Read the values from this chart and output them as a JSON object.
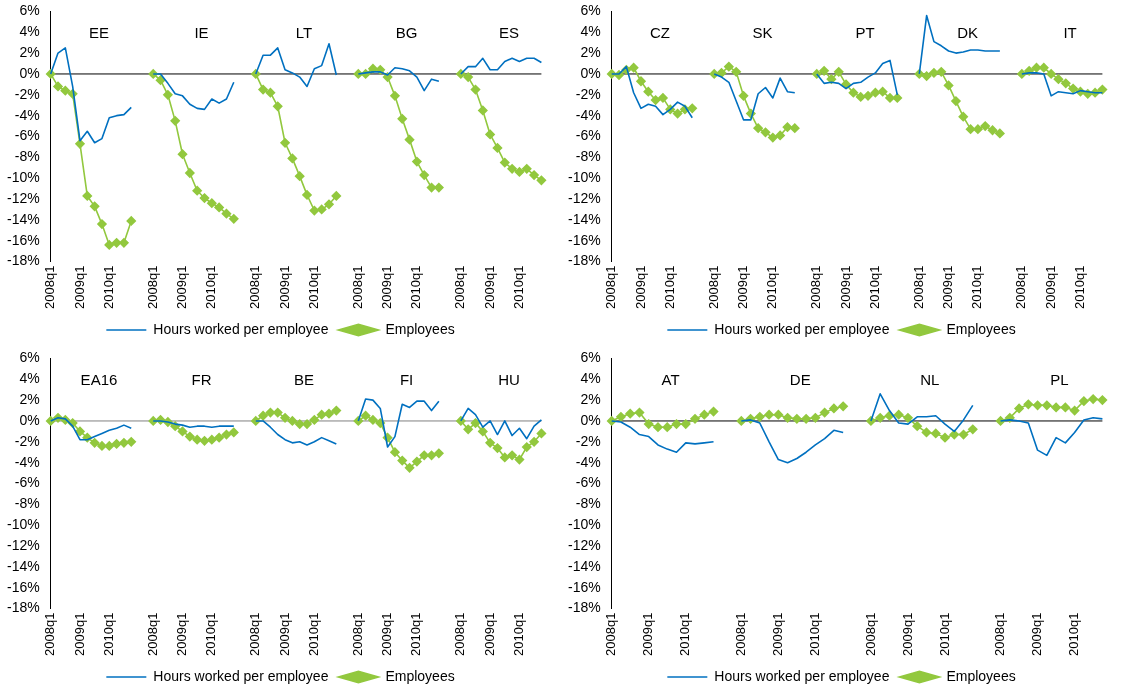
{
  "chart_data": [
    {
      "type": "line",
      "categories": [
        "2008q1",
        null,
        null,
        null,
        "2009q1",
        null,
        null,
        null,
        "2010q1",
        null,
        null,
        null,
        null,
        null,
        "2008q1",
        null,
        null,
        null,
        "2009q1",
        null,
        null,
        null,
        "2010q1",
        null,
        null,
        null,
        null,
        null,
        "2008q1",
        null,
        null,
        null,
        "2009q1",
        null,
        null,
        null,
        "2010q1",
        null,
        null,
        null,
        null,
        null,
        "2008q1",
        null,
        null,
        null,
        "2009q1",
        null,
        null,
        null,
        "2010q1",
        null,
        null,
        null,
        null,
        null,
        "2008q1",
        null,
        null,
        null,
        "2009q1",
        null,
        null,
        null,
        "2010q1",
        null,
        null,
        null
      ],
      "series": [
        {
          "name": "Employees",
          "color": "#92c83e",
          "marker": "diamond",
          "values": [
            0,
            -1.2,
            -1.6,
            -1.9,
            -6.7,
            -11.7,
            -12.7,
            -14.4,
            -16.4,
            -16.2,
            -16.2,
            -14.1,
            null,
            null,
            0,
            -0.6,
            -2.0,
            -4.5,
            -7.7,
            -9.5,
            -11.2,
            -11.9,
            -12.4,
            -12.8,
            -13.4,
            -13.9,
            null,
            null,
            0,
            -1.5,
            -1.8,
            -3.1,
            -6.6,
            -8.1,
            -9.8,
            -11.6,
            -13.1,
            -13.0,
            -12.5,
            -11.7,
            null,
            null,
            0,
            0,
            0.5,
            0.4,
            -0.3,
            -2.1,
            -4.3,
            -6.3,
            -8.4,
            -9.7,
            -10.9,
            -10.9,
            null,
            null,
            0,
            -0.3,
            -1.5,
            -3.5,
            -5.8,
            -7.1,
            -8.5,
            -9.1,
            -9.4,
            -9.1,
            -9.7,
            -10.2
          ]
        },
        {
          "name": "Hours worked per employee",
          "color": "#0070c0",
          "marker": "none",
          "values": [
            0,
            2.0,
            2.5,
            -1.2,
            -6.4,
            -5.5,
            -6.6,
            -6.2,
            -4.2,
            -4.0,
            -3.9,
            -3.2,
            null,
            null,
            0,
            0,
            -0.9,
            -1.9,
            -2.1,
            -2.9,
            -3.3,
            -3.4,
            -2.4,
            -2.8,
            -2.4,
            -0.8,
            null,
            null,
            0,
            1.8,
            1.8,
            2.5,
            0.4,
            0.1,
            -0.3,
            -1.2,
            0.5,
            0.8,
            2.9,
            -0.1,
            null,
            null,
            0,
            0.1,
            0.2,
            0.2,
            -0.1,
            0.6,
            0.5,
            0.3,
            -0.3,
            -1.6,
            -0.5,
            -0.7,
            null,
            null,
            0,
            0.7,
            0.7,
            1.5,
            0.4,
            0.4,
            1.2,
            1.5,
            1.2,
            1.5,
            1.5,
            1.1
          ]
        }
      ],
      "annotations": [
        "EE",
        "IE",
        "LT",
        "BG",
        "ES"
      ],
      "ylim": [
        -18,
        6
      ],
      "yticks": [
        {
          "value": 6,
          "label": "6%"
        },
        {
          "value": 4,
          "label": "4%"
        },
        {
          "value": 2,
          "label": "2%"
        },
        {
          "value": 0,
          "label": "0%"
        },
        {
          "value": -2,
          "label": "-2%"
        },
        {
          "value": -4,
          "label": "-4%"
        },
        {
          "value": -6,
          "label": "-6%"
        },
        {
          "value": -8,
          "label": "-8%"
        },
        {
          "value": -10,
          "label": "-10%"
        },
        {
          "value": -12,
          "label": "-12%"
        },
        {
          "value": -14,
          "label": "-14%"
        },
        {
          "value": -16,
          "label": "-16%"
        },
        {
          "value": -18,
          "label": "-18%"
        }
      ],
      "ref_lines": [
        {
          "axis": "y",
          "value": 0,
          "color": "#000000"
        }
      ],
      "legend": "bottom"
    },
    {
      "type": "line",
      "categories": [
        "2008q1",
        null,
        null,
        null,
        "2009q1",
        null,
        null,
        null,
        "2010q1",
        null,
        null,
        null,
        null,
        null,
        "2008q1",
        null,
        null,
        null,
        "2009q1",
        null,
        null,
        null,
        "2010q1",
        null,
        null,
        null,
        null,
        null,
        "2008q1",
        null,
        null,
        null,
        "2009q1",
        null,
        null,
        null,
        "2010q1",
        null,
        null,
        null,
        null,
        null,
        "2008q1",
        null,
        null,
        null,
        "2009q1",
        null,
        null,
        null,
        "2010q1",
        null,
        null,
        null,
        null,
        null,
        "2008q1",
        null,
        null,
        null,
        "2009q1",
        null,
        null,
        null,
        "2010q1",
        null,
        null,
        null
      ],
      "series": [
        {
          "name": "Employees",
          "color": "#92c83e",
          "marker": "diamond",
          "values": [
            0,
            -0.1,
            0.4,
            0.6,
            -0.7,
            -1.7,
            -2.5,
            -2.3,
            -3.4,
            -3.8,
            -3.4,
            -3.3,
            null,
            null,
            0,
            0.1,
            0.7,
            0.2,
            -2.1,
            -3.8,
            -5.2,
            -5.6,
            -6.1,
            -5.9,
            -5.1,
            -5.2,
            null,
            null,
            0,
            0.3,
            -0.5,
            0.2,
            -1.0,
            -1.8,
            -2.2,
            -2.1,
            -1.8,
            -1.7,
            -2.3,
            -2.3,
            null,
            null,
            0,
            -0.2,
            0.1,
            0.2,
            -1.1,
            -2.6,
            -4.1,
            -5.3,
            -5.3,
            -5.0,
            -5.4,
            -5.7,
            null,
            null,
            0,
            0.3,
            0.6,
            0.6,
            0,
            -0.5,
            -0.9,
            -1.4,
            -1.7,
            -1.9,
            -1.8,
            -1.5
          ]
        },
        {
          "name": "Hours worked per employee",
          "color": "#0070c0",
          "marker": "none",
          "values": [
            0,
            0,
            0.7,
            -1.8,
            -3.3,
            -2.9,
            -3.1,
            -3.9,
            -3.4,
            -2.7,
            -3.1,
            -4.2,
            null,
            null,
            0,
            -0.3,
            -0.8,
            -2.6,
            -4.4,
            -4.4,
            -1.9,
            -1.3,
            -2.3,
            -0.4,
            -1.7,
            -1.8,
            null,
            null,
            0,
            -0.9,
            -0.8,
            -0.9,
            -1.4,
            -0.9,
            -0.8,
            -0.3,
            0.1,
            1.0,
            1.3,
            -2.0,
            null,
            null,
            0,
            5.6,
            3.1,
            2.7,
            2.2,
            2.0,
            2.1,
            2.3,
            2.3,
            2.2,
            2.2,
            2.2,
            null,
            null,
            0,
            0.1,
            0.1,
            0,
            -2.1,
            -1.7,
            -1.8,
            -1.9,
            -1.6,
            -1.7,
            -1.8,
            -1.8
          ]
        }
      ],
      "annotations": [
        "CZ",
        "SK",
        "PT",
        "DK",
        "IT"
      ],
      "ylim": [
        -18,
        6
      ],
      "yticks": [
        {
          "value": 6,
          "label": "6%"
        },
        {
          "value": 4,
          "label": "4%"
        },
        {
          "value": 2,
          "label": "2%"
        },
        {
          "value": 0,
          "label": "0%"
        },
        {
          "value": -2,
          "label": "-2%"
        },
        {
          "value": -4,
          "label": "-4%"
        },
        {
          "value": -6,
          "label": "-6%"
        },
        {
          "value": -8,
          "label": "-8%"
        },
        {
          "value": -10,
          "label": "-10%"
        },
        {
          "value": -12,
          "label": "-12%"
        },
        {
          "value": -14,
          "label": "-14%"
        },
        {
          "value": -16,
          "label": "-16%"
        },
        {
          "value": -18,
          "label": "-18%"
        }
      ],
      "ref_lines": [
        {
          "axis": "y",
          "value": 0,
          "color": "#000000"
        }
      ],
      "legend": "bottom"
    },
    {
      "type": "line",
      "categories": [
        "2008q1",
        null,
        null,
        null,
        "2009q1",
        null,
        null,
        null,
        "2010q1",
        null,
        null,
        null,
        null,
        null,
        "2008q1",
        null,
        null,
        null,
        "2009q1",
        null,
        null,
        null,
        "2010q1",
        null,
        null,
        null,
        null,
        null,
        "2008q1",
        null,
        null,
        null,
        "2009q1",
        null,
        null,
        null,
        "2010q1",
        null,
        null,
        null,
        null,
        null,
        "2008q1",
        null,
        null,
        null,
        "2009q1",
        null,
        null,
        null,
        "2010q1",
        null,
        null,
        null,
        null,
        null,
        "2008q1",
        null,
        null,
        null,
        "2009q1",
        null,
        null,
        null,
        "2010q1",
        null,
        null,
        null
      ],
      "series": [
        {
          "name": "Employees",
          "color": "#92c83e",
          "marker": "diamond",
          "values": [
            0,
            0.3,
            0.1,
            -0.2,
            -1.0,
            -1.6,
            -2.1,
            -2.4,
            -2.4,
            -2.2,
            -2.1,
            -2.0,
            null,
            null,
            0,
            0.1,
            -0.1,
            -0.5,
            -1.0,
            -1.5,
            -1.8,
            -1.9,
            -1.8,
            -1.6,
            -1.3,
            -1.1,
            null,
            null,
            0,
            0.5,
            0.8,
            0.8,
            0.3,
            0,
            -0.3,
            -0.3,
            0.1,
            0.6,
            0.7,
            1.0,
            null,
            null,
            0,
            0.5,
            0.1,
            -0.2,
            -1.6,
            -3.0,
            -3.8,
            -4.5,
            -3.9,
            -3.3,
            -3.3,
            -3.1,
            null,
            null,
            0,
            -0.8,
            -0.2,
            -1.0,
            -2.1,
            -2.6,
            -3.5,
            -3.3,
            -3.7,
            -2.5,
            -2.0,
            -1.2
          ]
        },
        {
          "name": "Hours worked per employee",
          "color": "#0070c0",
          "marker": "none",
          "values": [
            0,
            0.3,
            0.2,
            -0.5,
            -1.8,
            -1.8,
            -1.5,
            -1.2,
            -0.9,
            -0.7,
            -0.4,
            -0.7,
            null,
            null,
            0,
            0,
            -0.1,
            -0.3,
            -0.4,
            -0.6,
            -0.5,
            -0.5,
            -0.6,
            -0.5,
            -0.5,
            -0.5,
            null,
            null,
            0,
            0,
            -0.6,
            -1.3,
            -1.8,
            -2.1,
            -2.0,
            -2.3,
            -2.0,
            -1.6,
            -1.9,
            -2.2,
            null,
            null,
            0,
            2.1,
            2.0,
            1.2,
            -2.5,
            -1.5,
            1.6,
            1.3,
            1.9,
            1.9,
            1.0,
            1.9,
            null,
            null,
            0,
            1.2,
            0.6,
            -0.6,
            0,
            -1.3,
            0,
            -1.4,
            -0.7,
            -1.7,
            -0.5,
            0.1
          ]
        }
      ],
      "annotations": [
        "EA16",
        "FR",
        "BE",
        "FI",
        "HU"
      ],
      "ylim": [
        -18,
        6
      ],
      "yticks": [
        {
          "value": 6,
          "label": "6%"
        },
        {
          "value": 4,
          "label": "4%"
        },
        {
          "value": 2,
          "label": "2%"
        },
        {
          "value": 0,
          "label": "0%"
        },
        {
          "value": -2,
          "label": "-2%"
        },
        {
          "value": -4,
          "label": "-4%"
        },
        {
          "value": -6,
          "label": "-6%"
        },
        {
          "value": -8,
          "label": "-8%"
        },
        {
          "value": -10,
          "label": "-10%"
        },
        {
          "value": -12,
          "label": "-12%"
        },
        {
          "value": -14,
          "label": "-14%"
        },
        {
          "value": -16,
          "label": "-16%"
        },
        {
          "value": -18,
          "label": "-18%"
        }
      ],
      "ref_lines": [
        {
          "axis": "y",
          "value": 0,
          "color": "#808080"
        }
      ],
      "legend": "bottom"
    },
    {
      "type": "line",
      "categories": [
        "2008q1",
        null,
        null,
        null,
        "2009q1",
        null,
        null,
        null,
        "2010q1",
        null,
        null,
        null,
        null,
        null,
        "2008q1",
        null,
        null,
        null,
        "2009q1",
        null,
        null,
        null,
        "2010q1",
        null,
        null,
        null,
        null,
        null,
        "2008q1",
        null,
        null,
        null,
        "2009q1",
        null,
        null,
        null,
        "2010q1",
        null,
        null,
        null,
        null,
        null,
        "2008q1",
        null,
        null,
        null,
        "2009q1",
        null,
        null,
        null,
        "2010q1",
        null,
        null,
        null
      ],
      "series": [
        {
          "name": "Employees",
          "color": "#92c83e",
          "marker": "diamond",
          "values": [
            0,
            0.4,
            0.7,
            0.8,
            -0.3,
            -0.6,
            -0.6,
            -0.3,
            -0.3,
            0.2,
            0.6,
            0.9,
            null,
            null,
            0,
            0.2,
            0.4,
            0.6,
            0.6,
            0.3,
            0.2,
            0.2,
            0.3,
            0.8,
            1.2,
            1.4,
            null,
            null,
            0,
            0.3,
            0.5,
            0.6,
            0.3,
            -0.5,
            -1.1,
            -1.2,
            -1.6,
            -1.3,
            -1.3,
            -0.8,
            null,
            null,
            0,
            0.3,
            1.2,
            1.6,
            1.5,
            1.5,
            1.3,
            1.3,
            1.0,
            1.9,
            2.1,
            2.0
          ]
        },
        {
          "name": "Hours worked per employee",
          "color": "#0070c0",
          "marker": "none",
          "values": [
            0,
            -0.1,
            -0.6,
            -1.3,
            -1.5,
            -2.3,
            -2.7,
            -3.0,
            -2.1,
            -2.2,
            -2.1,
            -2.0,
            null,
            null,
            0,
            0.1,
            -0.2,
            -2.0,
            -3.7,
            -4.0,
            -3.6,
            -3.0,
            -2.3,
            -1.7,
            -0.9,
            -1.1,
            null,
            null,
            0,
            2.6,
            1.0,
            -0.2,
            -0.3,
            0.4,
            0.4,
            0.5,
            -0.3,
            -1.0,
            0.1,
            1.5,
            null,
            null,
            0,
            0.1,
            0,
            -0.2,
            -2.8,
            -3.3,
            -1.6,
            -2.1,
            -1.1,
            0.1,
            0.3,
            0.2
          ]
        }
      ],
      "annotations": [
        "AT",
        "DE",
        "NL",
        "PL"
      ],
      "ylim": [
        -18,
        6
      ],
      "yticks": [
        {
          "value": 6,
          "label": "6%"
        },
        {
          "value": 4,
          "label": "4%"
        },
        {
          "value": 2,
          "label": "2%"
        },
        {
          "value": 0,
          "label": "0%"
        },
        {
          "value": -2,
          "label": "-2%"
        },
        {
          "value": -4,
          "label": "-4%"
        },
        {
          "value": -6,
          "label": "-6%"
        },
        {
          "value": -8,
          "label": "-8%"
        },
        {
          "value": -10,
          "label": "-10%"
        },
        {
          "value": -12,
          "label": "-12%"
        },
        {
          "value": -14,
          "label": "-14%"
        },
        {
          "value": -16,
          "label": "-16%"
        },
        {
          "value": -18,
          "label": "-18%"
        }
      ],
      "ref_lines": [
        {
          "axis": "y",
          "value": 0,
          "color": "#000000"
        }
      ],
      "legend": "bottom"
    }
  ]
}
